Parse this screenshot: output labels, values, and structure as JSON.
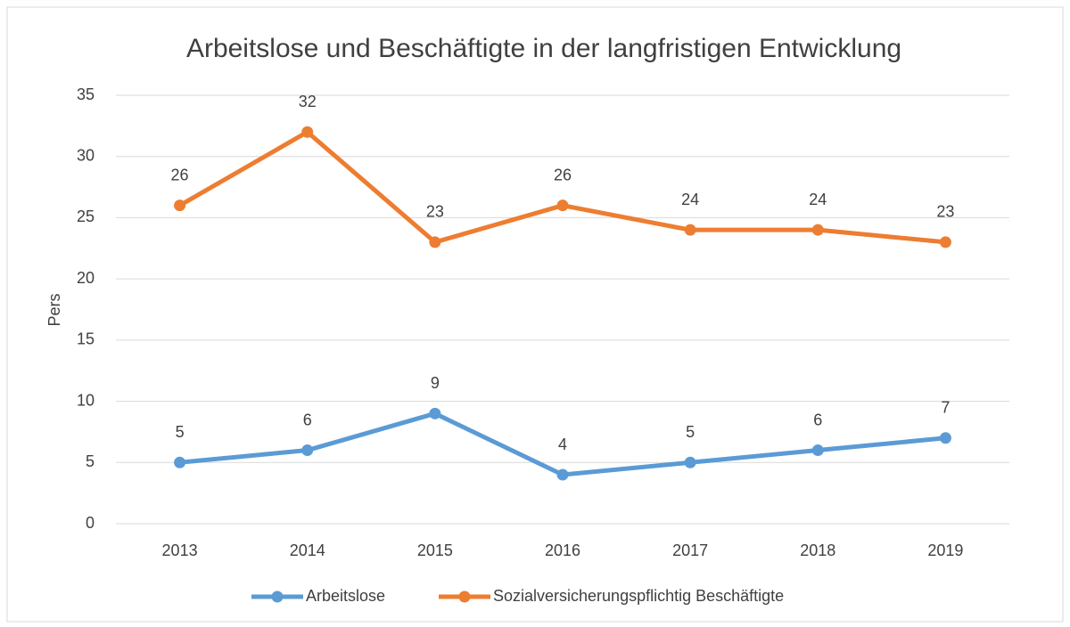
{
  "chart_data": {
    "type": "line",
    "title": "Arbeitslose und Beschäftigte in der langfristigen Entwicklung",
    "y_label": "Pers",
    "categories": [
      "2013",
      "2014",
      "2015",
      "2016",
      "2017",
      "2018",
      "2019"
    ],
    "series": [
      {
        "name": "Arbeitslose",
        "color": "#5b9bd5",
        "values": [
          5,
          6,
          9,
          4,
          5,
          6,
          7
        ]
      },
      {
        "name": "Sozialversicherungspflichtig Beschäftigte",
        "color": "#ed7d31",
        "values": [
          26,
          32,
          23,
          26,
          24,
          24,
          23
        ]
      }
    ],
    "ylim": [
      0,
      35
    ],
    "yticks": [
      0,
      5,
      10,
      15,
      20,
      25,
      30,
      35
    ],
    "grid": true,
    "legend": "bottom"
  }
}
